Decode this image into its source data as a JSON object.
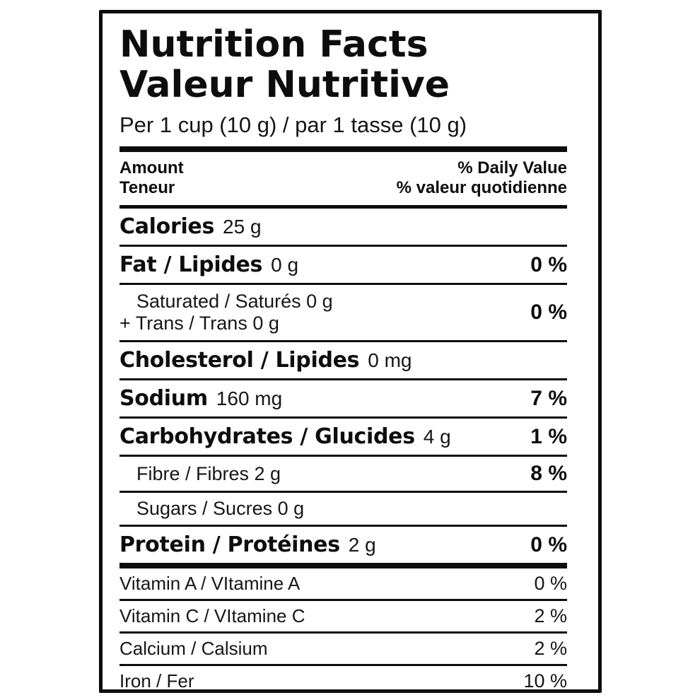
{
  "colors": {
    "ink": "#0d0d0d",
    "background": "#ffffff"
  },
  "label": {
    "title_line1": "Nutrition Facts",
    "title_line2": "Valeur Nutritive",
    "serving": "Per 1 cup (10 g) / par 1 tasse (10 g)",
    "columns": {
      "amount_en": "Amount",
      "amount_fr": "Teneur",
      "daily_value_en": "% Daily Value",
      "daily_value_fr": "% valeur quotidienne"
    },
    "rows": [
      {
        "id": "calories",
        "name": "Calories",
        "value": "25 g"
      },
      {
        "id": "fat",
        "name": "Fat / Lipides",
        "value": "0 g",
        "dv": "0 %"
      },
      {
        "id": "saturated-trans",
        "line1": "Saturated / Saturés 0 g",
        "line2": "+ Trans / Trans 0 g",
        "dv": "0 %"
      },
      {
        "id": "cholesterol",
        "name": "Cholesterol / Lipides",
        "value": "0 mg"
      },
      {
        "id": "sodium",
        "name": "Sodium",
        "value": "160 mg",
        "dv": "7 %"
      },
      {
        "id": "carbohydrates",
        "name": "Carbohydrates / Glucides",
        "value": "4 g",
        "dv": "1 %"
      },
      {
        "id": "fibre",
        "text": "Fibre / Fibres 2 g",
        "dv": "8 %"
      },
      {
        "id": "sugars",
        "text": "Sugars / Sucres 0 g"
      },
      {
        "id": "protein",
        "name": "Protein / Protéines",
        "value": "2 g",
        "dv": "0 %"
      },
      {
        "id": "vitamin-a",
        "text": "Vitamin A / VItamine A",
        "dv": "0 %"
      },
      {
        "id": "vitamin-c",
        "text": "Vitamin C / VItamine C",
        "dv": "2 %"
      },
      {
        "id": "calcium",
        "text": "Calcium / Calsium",
        "dv": "2 %"
      },
      {
        "id": "iron",
        "text": "Iron / Fer",
        "dv": "10 %"
      }
    ]
  }
}
